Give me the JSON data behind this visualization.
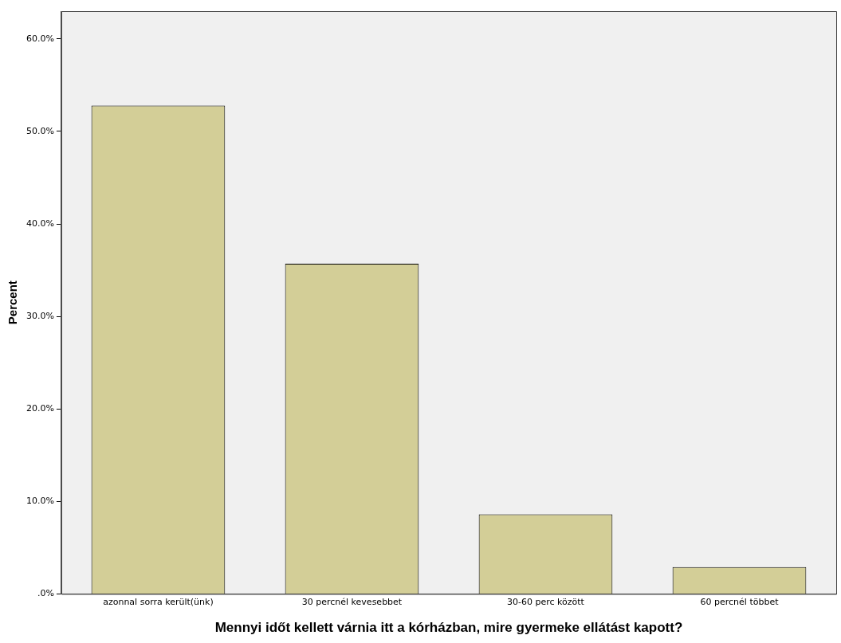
{
  "chart_data": {
    "type": "bar",
    "xlabel": "Mennyi időt kellett várnia itt a kórházban, mire gyermeke ellátást kapott?",
    "ylabel": "Percent",
    "categories": [
      "azonnal sorra került(ünk)",
      "30 percnél kevesebbet",
      "30-60 perc között",
      "60 percnél többet"
    ],
    "values": [
      52.8,
      35.7,
      8.6,
      2.9
    ],
    "color": "#d3ce97",
    "ylim": [
      0,
      63
    ],
    "yticks": [
      {
        "value": 0,
        "label": ".0%"
      },
      {
        "value": 10,
        "label": "10.0%"
      },
      {
        "value": 20,
        "label": "20.0%"
      },
      {
        "value": 30,
        "label": "30.0%"
      },
      {
        "value": 40,
        "label": "40.0%"
      },
      {
        "value": 50,
        "label": "50.0%"
      },
      {
        "value": 60,
        "label": "60.0%"
      }
    ],
    "grid": false,
    "legend": false
  }
}
